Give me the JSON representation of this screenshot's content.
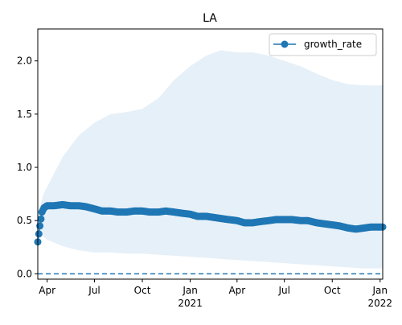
{
  "chart_data": {
    "type": "line",
    "title": "LA",
    "xlabel": "",
    "ylabel": "",
    "ylim": [
      -0.05,
      2.3
    ],
    "xlim": [
      "2020-03-14",
      "2022-01-06"
    ],
    "grid": false,
    "legend": "upper right",
    "xticks": [
      {
        "date": "2020-04-01",
        "label": "Apr",
        "sublabel": ""
      },
      {
        "date": "2020-07-01",
        "label": "Jul",
        "sublabel": ""
      },
      {
        "date": "2020-10-01",
        "label": "Oct",
        "sublabel": ""
      },
      {
        "date": "2021-01-01",
        "label": "Jan",
        "sublabel": "2021"
      },
      {
        "date": "2021-04-01",
        "label": "Apr",
        "sublabel": ""
      },
      {
        "date": "2021-07-01",
        "label": "Jul",
        "sublabel": ""
      },
      {
        "date": "2021-10-01",
        "label": "Oct",
        "sublabel": ""
      },
      {
        "date": "2022-01-01",
        "label": "Jan",
        "sublabel": "2022"
      }
    ],
    "yticks": [
      "0.0",
      "0.5",
      "1.0",
      "1.5",
      "2.0"
    ],
    "series": [
      {
        "name": "growth_rate",
        "color": "#1f77b4",
        "marker": "circle",
        "points": [
          [
            "2020-03-14",
            0.3
          ],
          [
            "2020-03-18",
            0.45
          ],
          [
            "2020-03-22",
            0.58
          ],
          [
            "2020-03-26",
            0.62
          ],
          [
            "2020-04-01",
            0.64
          ],
          [
            "2020-04-15",
            0.64
          ],
          [
            "2020-05-01",
            0.65
          ],
          [
            "2020-05-15",
            0.64
          ],
          [
            "2020-06-01",
            0.64
          ],
          [
            "2020-06-15",
            0.63
          ],
          [
            "2020-07-01",
            0.61
          ],
          [
            "2020-07-15",
            0.59
          ],
          [
            "2020-08-01",
            0.59
          ],
          [
            "2020-08-15",
            0.58
          ],
          [
            "2020-09-01",
            0.58
          ],
          [
            "2020-09-15",
            0.59
          ],
          [
            "2020-10-01",
            0.59
          ],
          [
            "2020-10-15",
            0.58
          ],
          [
            "2020-11-01",
            0.58
          ],
          [
            "2020-11-15",
            0.59
          ],
          [
            "2020-12-01",
            0.58
          ],
          [
            "2020-12-15",
            0.57
          ],
          [
            "2021-01-01",
            0.56
          ],
          [
            "2021-01-15",
            0.54
          ],
          [
            "2021-02-01",
            0.54
          ],
          [
            "2021-02-15",
            0.53
          ],
          [
            "2021-03-01",
            0.52
          ],
          [
            "2021-03-15",
            0.51
          ],
          [
            "2021-04-01",
            0.5
          ],
          [
            "2021-04-15",
            0.48
          ],
          [
            "2021-05-01",
            0.48
          ],
          [
            "2021-05-15",
            0.49
          ],
          [
            "2021-06-01",
            0.5
          ],
          [
            "2021-06-15",
            0.51
          ],
          [
            "2021-07-01",
            0.51
          ],
          [
            "2021-07-15",
            0.51
          ],
          [
            "2021-08-01",
            0.5
          ],
          [
            "2021-08-15",
            0.5
          ],
          [
            "2021-09-01",
            0.48
          ],
          [
            "2021-09-15",
            0.47
          ],
          [
            "2021-10-01",
            0.46
          ],
          [
            "2021-10-15",
            0.45
          ],
          [
            "2021-11-01",
            0.43
          ],
          [
            "2021-11-15",
            0.42
          ],
          [
            "2021-12-01",
            0.43
          ],
          [
            "2021-12-15",
            0.44
          ],
          [
            "2022-01-06",
            0.44
          ]
        ]
      }
    ],
    "band": {
      "color": "#d6e6f4",
      "lower": [
        [
          "2020-03-14",
          0.4
        ],
        [
          "2020-04-01",
          0.32
        ],
        [
          "2020-05-01",
          0.26
        ],
        [
          "2020-06-01",
          0.22
        ],
        [
          "2020-07-01",
          0.2
        ],
        [
          "2020-08-01",
          0.2
        ],
        [
          "2020-09-01",
          0.19
        ],
        [
          "2020-10-01",
          0.19
        ],
        [
          "2020-11-01",
          0.18
        ],
        [
          "2020-12-01",
          0.17
        ],
        [
          "2021-01-01",
          0.16
        ],
        [
          "2021-02-01",
          0.15
        ],
        [
          "2021-03-01",
          0.14
        ],
        [
          "2021-04-01",
          0.13
        ],
        [
          "2021-05-01",
          0.12
        ],
        [
          "2021-06-01",
          0.11
        ],
        [
          "2021-07-01",
          0.1
        ],
        [
          "2021-08-01",
          0.09
        ],
        [
          "2021-09-01",
          0.08
        ],
        [
          "2021-10-01",
          0.07
        ],
        [
          "2021-11-01",
          0.06
        ],
        [
          "2021-12-01",
          0.05
        ],
        [
          "2022-01-06",
          0.05
        ]
      ],
      "upper": [
        [
          "2020-03-14",
          0.55
        ],
        [
          "2020-03-25",
          0.75
        ],
        [
          "2020-04-15",
          0.95
        ],
        [
          "2020-05-01",
          1.1
        ],
        [
          "2020-06-01",
          1.3
        ],
        [
          "2020-07-01",
          1.42
        ],
        [
          "2020-08-01",
          1.5
        ],
        [
          "2020-09-01",
          1.52
        ],
        [
          "2020-10-01",
          1.55
        ],
        [
          "2020-11-01",
          1.65
        ],
        [
          "2020-12-01",
          1.82
        ],
        [
          "2021-01-01",
          1.95
        ],
        [
          "2021-02-01",
          2.05
        ],
        [
          "2021-03-01",
          2.1
        ],
        [
          "2021-04-01",
          2.08
        ],
        [
          "2021-05-01",
          2.08
        ],
        [
          "2021-06-01",
          2.05
        ],
        [
          "2021-07-01",
          2.0
        ],
        [
          "2021-08-01",
          1.95
        ],
        [
          "2021-09-01",
          1.88
        ],
        [
          "2021-10-01",
          1.82
        ],
        [
          "2021-11-01",
          1.78
        ],
        [
          "2021-12-01",
          1.77
        ],
        [
          "2022-01-06",
          1.77
        ]
      ]
    },
    "reference_line": {
      "y": 0.0,
      "style": "dashed",
      "color": "#1f77b4"
    }
  }
}
